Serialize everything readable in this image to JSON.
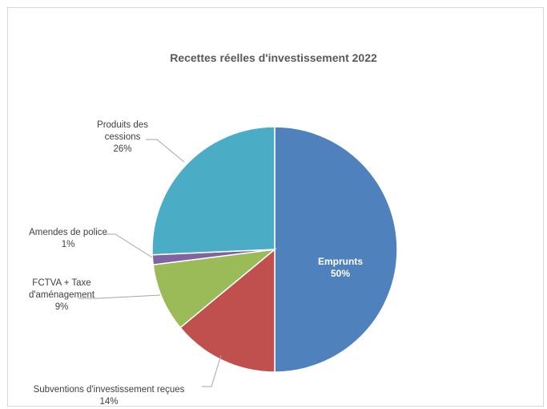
{
  "chart_data": {
    "type": "pie",
    "title": "Recettes réelles d'investissement 2022",
    "slices": [
      {
        "label_lines": [
          "Emprunts"
        ],
        "pct_label": "50%",
        "value": 50,
        "color": "#4f81bd"
      },
      {
        "label_lines": [
          "Subventions d'investissement reçues"
        ],
        "pct_label": "14%",
        "value": 14,
        "color": "#c0504d"
      },
      {
        "label_lines": [
          "FCTVA + Taxe",
          "d'aménagement"
        ],
        "pct_label": "9%",
        "value": 9,
        "color": "#9bbb59"
      },
      {
        "label_lines": [
          "Amendes de police"
        ],
        "pct_label": "1%",
        "value": 1.3,
        "color": "#8064a2"
      },
      {
        "label_lines": [
          "Produits des",
          "cessions"
        ],
        "pct_label": "26%",
        "value": 25.7,
        "color": "#4bacc6"
      }
    ],
    "legend": "none"
  }
}
